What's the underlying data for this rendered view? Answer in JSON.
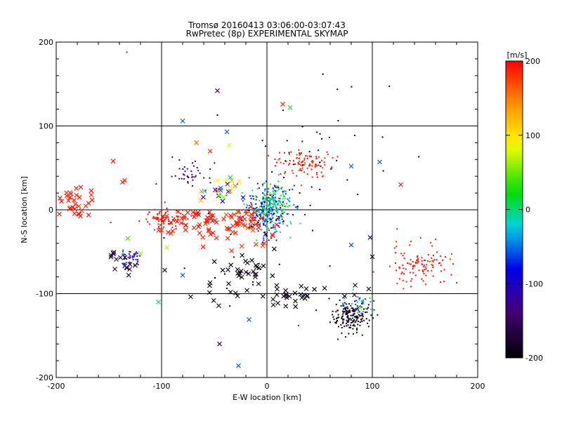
{
  "chart_data": {
    "type": "scatter",
    "title": "Tromsø 20160413 03:06:00-03:07:43",
    "subtitle": "RwPretec (8p) EXPERIMENTAL SKYMAP",
    "xlabel": "E-W location [km]",
    "ylabel": "N-S location [km]",
    "xlim": [
      -200,
      200
    ],
    "ylim": [
      -200,
      200
    ],
    "xticks": [
      "-200",
      "-100",
      "0",
      "100",
      "200"
    ],
    "yticks": [
      "-200",
      "-100",
      "0",
      "100",
      "200"
    ],
    "grid": true,
    "colorbar": {
      "label": "[m/s]",
      "min": -200,
      "max": 200,
      "ticks": [
        "200",
        "100",
        "0",
        "-100",
        "-200"
      ]
    },
    "markers": [
      "dot",
      "x"
    ],
    "clusters": [
      {
        "x": 0,
        "y": 0,
        "sx": 11,
        "sy": 15,
        "n": 320,
        "vmin": -130,
        "vmax": 20,
        "marker": "dot"
      },
      {
        "x": 5,
        "y": 10,
        "sx": 10,
        "sy": 10,
        "n": 90,
        "vmin": -20,
        "vmax": 60,
        "marker": "dot"
      },
      {
        "x": -100,
        "y": -10,
        "sx": 12,
        "sy": 6,
        "n": 90,
        "vmin": 185,
        "vmax": 200,
        "marker": "dot"
      },
      {
        "x": -60,
        "y": -15,
        "sx": 25,
        "sy": 10,
        "n": 60,
        "vmin": 185,
        "vmax": 200,
        "marker": "x"
      },
      {
        "x": -20,
        "y": -15,
        "sx": 12,
        "sy": 10,
        "n": 40,
        "vmin": 170,
        "vmax": 200,
        "marker": "x"
      },
      {
        "x": 35,
        "y": 55,
        "sx": 15,
        "sy": 8,
        "n": 100,
        "vmin": 175,
        "vmax": 200,
        "marker": "dot"
      },
      {
        "x": 145,
        "y": -65,
        "sx": 14,
        "sy": 12,
        "n": 110,
        "vmin": 185,
        "vmax": 200,
        "marker": "dot"
      },
      {
        "x": 80,
        "y": -128,
        "sx": 10,
        "sy": 9,
        "n": 170,
        "vmin": -210,
        "vmax": -170,
        "marker": "dot"
      },
      {
        "x": 90,
        "y": -112,
        "sx": 7,
        "sy": 7,
        "n": 35,
        "vmin": -120,
        "vmax": 20,
        "marker": "dot"
      },
      {
        "x": 20,
        "y": -100,
        "sx": 35,
        "sy": 6,
        "n": 40,
        "vmin": -210,
        "vmax": -180,
        "marker": "x"
      },
      {
        "x": -20,
        "y": -70,
        "sx": 14,
        "sy": 12,
        "n": 30,
        "vmin": -210,
        "vmax": -180,
        "marker": "x"
      },
      {
        "x": -130,
        "y": -58,
        "sx": 5,
        "sy": 5,
        "n": 45,
        "vmin": -130,
        "vmax": -50,
        "marker": "dot"
      },
      {
        "x": -135,
        "y": -62,
        "sx": 7,
        "sy": 6,
        "n": 15,
        "vmin": -200,
        "vmax": -150,
        "marker": "x"
      },
      {
        "x": -180,
        "y": 10,
        "sx": 9,
        "sy": 10,
        "n": 30,
        "vmin": 185,
        "vmax": 200,
        "marker": "x"
      },
      {
        "x": -75,
        "y": 40,
        "sx": 10,
        "sy": 8,
        "n": 40,
        "vmin": -170,
        "vmax": -110,
        "marker": "dot"
      },
      {
        "x": -45,
        "y": 25,
        "sx": 8,
        "sy": 10,
        "n": 25,
        "vmin": -150,
        "vmax": 200,
        "marker": "x"
      },
      {
        "x": 50,
        "y": 60,
        "sx": 30,
        "sy": 50,
        "n": 40,
        "vmin": -210,
        "vmax": -190,
        "marker": "dot"
      },
      {
        "x": -30,
        "y": -50,
        "sx": 40,
        "sy": 40,
        "n": 25,
        "vmin": -210,
        "vmax": -190,
        "marker": "dot"
      }
    ],
    "points": [
      {
        "x": -47,
        "y": 142,
        "v": -160,
        "marker": "x"
      },
      {
        "x": 15,
        "y": 126,
        "v": 190,
        "marker": "x"
      },
      {
        "x": 22,
        "y": 122,
        "v": 30,
        "marker": "x"
      },
      {
        "x": -80,
        "y": 106,
        "v": -60,
        "marker": "x"
      },
      {
        "x": 107,
        "y": 57,
        "v": -60,
        "marker": "x"
      },
      {
        "x": 127,
        "y": 30,
        "v": 195,
        "marker": "x"
      },
      {
        "x": -146,
        "y": 58,
        "v": 195,
        "marker": "x"
      },
      {
        "x": -137,
        "y": 33,
        "v": 195,
        "marker": "x"
      },
      {
        "x": -103,
        "y": -110,
        "v": -10,
        "marker": "x"
      },
      {
        "x": -45,
        "y": -160,
        "v": -170,
        "marker": "x"
      },
      {
        "x": -27,
        "y": -186,
        "v": -60,
        "marker": "x"
      },
      {
        "x": -17,
        "y": -131,
        "v": -60,
        "marker": "x"
      },
      {
        "x": -80,
        "y": -78,
        "v": -60,
        "marker": "x"
      },
      {
        "x": -97,
        "y": -72,
        "v": -200,
        "marker": "x"
      },
      {
        "x": -67,
        "y": 80,
        "v": 160,
        "marker": "x"
      },
      {
        "x": -54,
        "y": 70,
        "v": 190,
        "marker": "x"
      },
      {
        "x": -38,
        "y": 93,
        "v": -60,
        "marker": "x"
      },
      {
        "x": -36,
        "y": 77,
        "v": 80,
        "marker": "x"
      },
      {
        "x": 80,
        "y": 52,
        "v": -60,
        "marker": "x"
      },
      {
        "x": 100,
        "y": -56,
        "v": -200,
        "marker": "x"
      },
      {
        "x": 80,
        "y": -42,
        "v": -60,
        "marker": "x"
      },
      {
        "x": 88,
        "y": -117,
        "v": 60,
        "marker": "x"
      },
      {
        "x": 98,
        "y": -33,
        "v": -160,
        "marker": "x"
      },
      {
        "x": -132,
        "y": -34,
        "v": 40,
        "marker": "x"
      },
      {
        "x": -120,
        "y": -52,
        "v": 60,
        "marker": "x"
      },
      {
        "x": -95,
        "y": -45,
        "v": 70,
        "marker": "x"
      },
      {
        "x": -197,
        "y": -5,
        "v": 195,
        "marker": "x"
      },
      {
        "x": -135,
        "y": 35,
        "v": 190,
        "marker": "x"
      },
      {
        "x": -130,
        "y": -65,
        "v": -180,
        "marker": "x"
      },
      {
        "x": -133,
        "y": 188,
        "v": 195,
        "marker": "dot"
      },
      {
        "x": -47,
        "y": 113,
        "v": -200,
        "marker": "dot"
      },
      {
        "x": 180,
        "y": -87,
        "v": 195,
        "marker": "dot"
      },
      {
        "x": 30,
        "y": -138,
        "v": -60,
        "marker": "dot"
      }
    ]
  }
}
